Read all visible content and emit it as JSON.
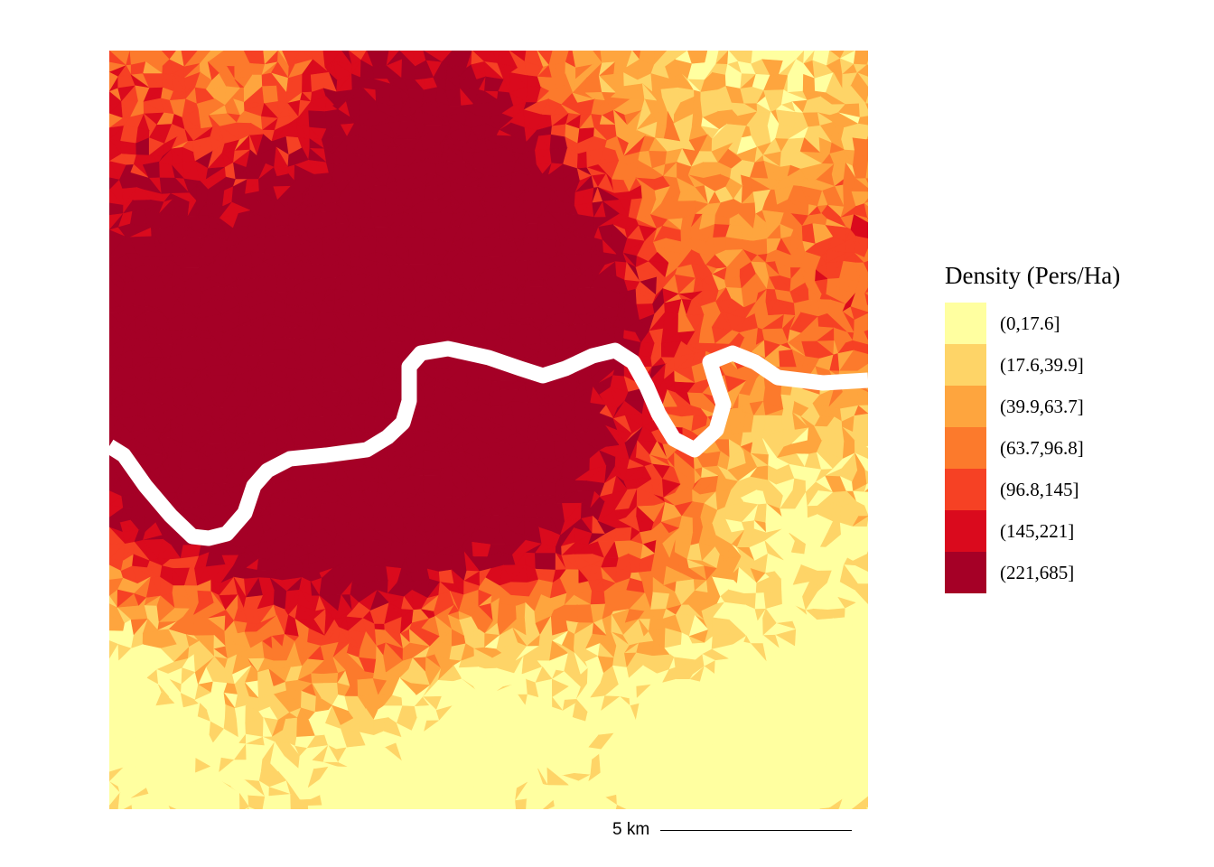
{
  "legend": {
    "title": "Density (Pers/Ha)",
    "classes": [
      {
        "label": "(0,17.6]",
        "color": "#ffffa0"
      },
      {
        "label": "(17.6,39.9]",
        "color": "#fed467"
      },
      {
        "label": "(39.9,63.7]",
        "color": "#fea53e"
      },
      {
        "label": "(63.7,96.8]",
        "color": "#fc7a2c"
      },
      {
        "label": "(96.8,145]",
        "color": "#f64124"
      },
      {
        "label": "(145,221]",
        "color": "#da0a1d"
      },
      {
        "label": "(221,685]",
        "color": "#a50026"
      }
    ]
  },
  "scalebar": {
    "label": "5 km"
  },
  "map": {
    "background": "#ffffff",
    "river_color": "#ffffff"
  }
}
